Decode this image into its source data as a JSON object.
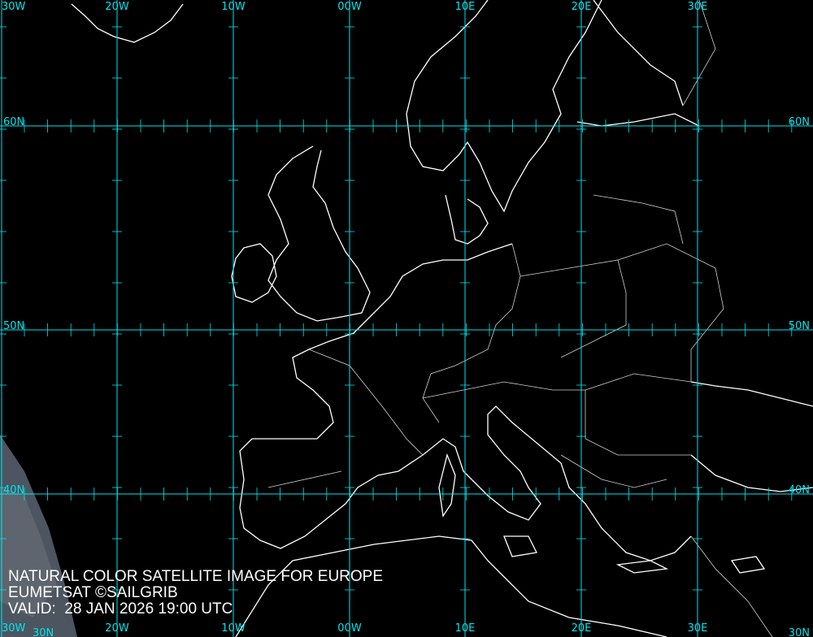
{
  "caption": {
    "title": "NATURAL COLOR SATELLITE IMAGE FOR EUROPE",
    "credit": "EUMETSAT ©SAILGRIB",
    "valid": "VALID:  28 JAN 2026 19:00 UTC"
  },
  "grid": {
    "longitudes": [
      "30W",
      "20W",
      "10W",
      "00W",
      "10E",
      "20E",
      "30E"
    ],
    "latitudes": [
      "60N",
      "50N",
      "40N",
      "30N"
    ],
    "color": "#00e5ee"
  },
  "colors": {
    "background": "#000000",
    "coastline": "#ffffff",
    "borders": "#d0d0d0"
  }
}
